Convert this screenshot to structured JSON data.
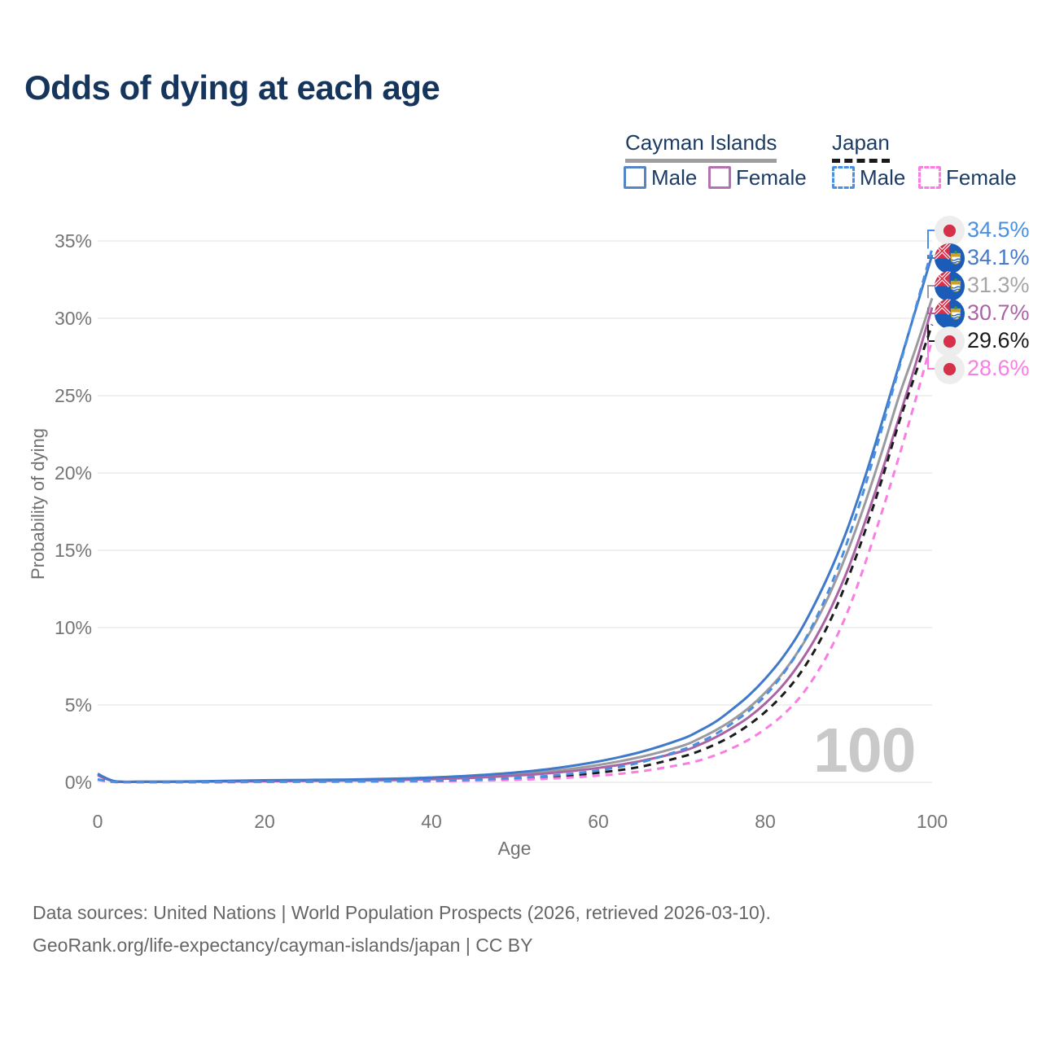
{
  "title": "Odds of dying at each age",
  "legend": {
    "groups": [
      {
        "name": "Cayman Islands",
        "line_style": "solid",
        "underline_color": "#9e9e9e",
        "items": [
          {
            "label": "Male",
            "swatch_color": "#5585c8",
            "series": "cayman_male"
          },
          {
            "label": "Female",
            "swatch_color": "#b273ae",
            "series": "cayman_female"
          }
        ]
      },
      {
        "name": "Japan",
        "line_style": "dashed",
        "underline_color": "#1a1a1a",
        "items": [
          {
            "label": "Male",
            "swatch_color": "#4a90e2",
            "series": "japan_male"
          },
          {
            "label": "Female",
            "swatch_color": "#fb7de4",
            "series": "japan_female"
          }
        ]
      }
    ]
  },
  "chart_data": {
    "type": "line",
    "title": "Odds of dying at each age",
    "xlabel": "Age",
    "ylabel": "Probability of dying",
    "xlim": [
      0,
      110
    ],
    "ylim_pct": [
      0,
      36
    ],
    "grid": "horizontal",
    "legend_position": "top-right",
    "watermark": "100",
    "x_ticks": [
      {
        "label": "0",
        "value": 0
      },
      {
        "label": "20",
        "value": 20
      },
      {
        "label": "40",
        "value": 40
      },
      {
        "label": "60",
        "value": 60
      },
      {
        "label": "80",
        "value": 80
      },
      {
        "label": "100",
        "value": 100
      }
    ],
    "y_ticks": [
      {
        "label": "0%",
        "value": 0
      },
      {
        "label": "5%",
        "value": 5
      },
      {
        "label": "10%",
        "value": 10
      },
      {
        "label": "15%",
        "value": 15
      },
      {
        "label": "20%",
        "value": 20
      },
      {
        "label": "25%",
        "value": 25
      },
      {
        "label": "30%",
        "value": 30
      },
      {
        "label": "35%",
        "value": 35
      }
    ],
    "x": [
      0,
      2,
      5,
      10,
      15,
      20,
      25,
      30,
      35,
      40,
      45,
      50,
      55,
      60,
      65,
      70,
      72,
      74,
      76,
      78,
      80,
      82,
      84,
      86,
      88,
      90,
      92,
      94,
      96,
      98,
      100
    ],
    "series": [
      {
        "id": "cayman_total",
        "name": "Cayman Islands (both sexes)",
        "country": "Cayman Islands",
        "sex": "total",
        "color": "#9b9b9f",
        "dash": "solid",
        "flag": "cayman-islands",
        "end_value_pct": 31.3,
        "values": [
          0.5,
          0.07,
          0.035,
          0.04,
          0.07,
          0.1,
          0.12,
          0.14,
          0.18,
          0.25,
          0.36,
          0.52,
          0.76,
          1.12,
          1.63,
          2.35,
          2.8,
          3.35,
          4.0,
          4.8,
          5.8,
          7.0,
          8.5,
          10.3,
          12.5,
          15.1,
          18.1,
          21.4,
          24.9,
          28.0,
          31.3
        ]
      },
      {
        "id": "cayman_female",
        "name": "Cayman Islands Female",
        "country": "Cayman Islands",
        "sex": "female",
        "color": "#aa64a5",
        "dash": "solid",
        "flag": "cayman-islands",
        "end_value_pct": 30.7,
        "values": [
          0.45,
          0.06,
          0.03,
          0.035,
          0.05,
          0.07,
          0.09,
          0.11,
          0.14,
          0.2,
          0.29,
          0.43,
          0.63,
          0.93,
          1.37,
          2.0,
          2.4,
          2.9,
          3.5,
          4.2,
          5.1,
          6.2,
          7.6,
          9.3,
          11.4,
          13.9,
          16.9,
          20.1,
          23.5,
          27.0,
          30.7
        ]
      },
      {
        "id": "cayman_male",
        "name": "Cayman Islands Male",
        "country": "Cayman Islands",
        "sex": "male",
        "color": "#3f79c9",
        "dash": "solid",
        "flag": "cayman-islands",
        "end_value_pct": 34.1,
        "values": [
          0.55,
          0.08,
          0.04,
          0.05,
          0.09,
          0.13,
          0.15,
          0.18,
          0.23,
          0.31,
          0.44,
          0.63,
          0.92,
          1.35,
          1.95,
          2.8,
          3.3,
          3.9,
          4.7,
          5.6,
          6.7,
          8.0,
          9.6,
          11.6,
          13.9,
          16.6,
          19.8,
          23.3,
          26.9,
          30.5,
          34.1
        ]
      },
      {
        "id": "japan_total",
        "name": "Japan (both sexes)",
        "country": "Japan",
        "sex": "total",
        "color": "#1c1c1c",
        "dash": "dashed",
        "flag": "japan",
        "end_value_pct": 29.6,
        "values": [
          0.17,
          0.025,
          0.009,
          0.009,
          0.017,
          0.03,
          0.04,
          0.05,
          0.06,
          0.09,
          0.14,
          0.23,
          0.38,
          0.62,
          1.0,
          1.65,
          2.0,
          2.45,
          3.0,
          3.7,
          4.55,
          5.6,
          6.9,
          8.6,
          10.7,
          13.3,
          16.3,
          19.6,
          23.2,
          26.4,
          29.6
        ]
      },
      {
        "id": "japan_female",
        "name": "Japan Female",
        "country": "Japan",
        "sex": "female",
        "color": "#f97de2",
        "dash": "dashed",
        "flag": "japan",
        "end_value_pct": 28.6,
        "values": [
          0.16,
          0.02,
          0.008,
          0.008,
          0.014,
          0.02,
          0.03,
          0.04,
          0.05,
          0.07,
          0.1,
          0.16,
          0.26,
          0.43,
          0.7,
          1.15,
          1.4,
          1.75,
          2.2,
          2.75,
          3.45,
          4.3,
          5.4,
          6.9,
          8.8,
          11.2,
          14.2,
          17.5,
          21.0,
          24.7,
          28.6
        ]
      },
      {
        "id": "japan_male",
        "name": "Japan Male",
        "country": "Japan",
        "sex": "male",
        "color": "#4a90e2",
        "dash": "dashed",
        "flag": "japan",
        "end_value_pct": 34.5,
        "values": [
          0.19,
          0.03,
          0.01,
          0.01,
          0.02,
          0.04,
          0.05,
          0.06,
          0.08,
          0.1,
          0.17,
          0.28,
          0.46,
          0.77,
          1.28,
          2.1,
          2.55,
          3.1,
          3.8,
          4.6,
          5.6,
          6.9,
          8.5,
          10.5,
          12.9,
          15.8,
          19.2,
          22.9,
          26.7,
          30.6,
          34.5
        ]
      }
    ],
    "end_labels": [
      {
        "series": "japan_male",
        "label": "34.5%",
        "label_color": "#4a90e2",
        "flag": "japan"
      },
      {
        "series": "cayman_male",
        "label": "34.1%",
        "label_color": "#4679c8",
        "flag": "cayman-islands"
      },
      {
        "series": "cayman_total",
        "label": "31.3%",
        "label_color": "#a5a5a5",
        "flag": "cayman-islands"
      },
      {
        "series": "cayman_female",
        "label": "30.7%",
        "label_color": "#aa64a5",
        "flag": "cayman-islands"
      },
      {
        "series": "japan_total",
        "label": "29.6%",
        "label_color": "#1a1a1a",
        "flag": "japan"
      },
      {
        "series": "japan_female",
        "label": "28.6%",
        "label_color": "#f97de2",
        "flag": "japan"
      }
    ]
  },
  "footer": {
    "line1": "Data sources: United Nations | World Population Prospects (2026, retrieved 2026-03-10).",
    "line2": "GeoRank.org/life-expectancy/cayman-islands/japan | CC BY"
  },
  "colors": {
    "title_text": "#16355d",
    "legend_text": "#1d3c63",
    "axis_text": "#757575",
    "grid_line": "#ececec",
    "watermark": "#c9c9c9",
    "footer_text": "#666666",
    "japan_flag_red": "#d7314a",
    "cayman_flag_blue": "#1a5cb8"
  }
}
